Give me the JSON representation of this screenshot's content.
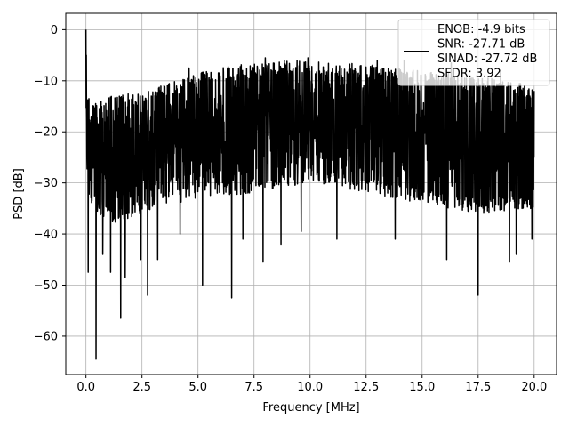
{
  "chart_data": {
    "type": "line",
    "xlabel": "Frequency [MHz]",
    "ylabel": "PSD [dB]",
    "xlim": [
      -0.9,
      21.0
    ],
    "ylim": [
      -67.5,
      3.2
    ],
    "xticks": [
      0.0,
      2.5,
      5.0,
      7.5,
      10.0,
      12.5,
      15.0,
      17.5,
      20.0
    ],
    "xtick_labels": [
      "0.0",
      "2.5",
      "5.0",
      "7.5",
      "10.0",
      "12.5",
      "15.0",
      "17.5",
      "20.0"
    ],
    "yticks": [
      0,
      -10,
      -20,
      -30,
      -40,
      -50,
      -60
    ],
    "ytick_labels": [
      "0",
      "−10",
      "−20",
      "−30",
      "−40",
      "−50",
      "−60"
    ],
    "grid": true,
    "legend_position": "top-right",
    "line_color": "#000000",
    "series": [
      {
        "name": "ENOB: -4.9 bits\nSNR: -27.71 dB\nSINAD: -27.72 dB\nSFDR: 3.92",
        "x_range": [
          0.0,
          20.0
        ],
        "envelope_upper": [
          [
            0.0,
            -12.0
          ],
          [
            0.5,
            -14.0
          ],
          [
            1.0,
            -13.0
          ],
          [
            2.0,
            -12.5
          ],
          [
            3.0,
            -11.5
          ],
          [
            4.0,
            -10.0
          ],
          [
            5.0,
            -8.5
          ],
          [
            6.0,
            -7.5
          ],
          [
            7.5,
            -6.5
          ],
          [
            9.0,
            -6.0
          ],
          [
            10.0,
            -6.0
          ],
          [
            12.0,
            -6.5
          ],
          [
            14.0,
            -7.5
          ],
          [
            16.0,
            -8.5
          ],
          [
            18.0,
            -9.5
          ],
          [
            20.0,
            -11.0
          ]
        ],
        "envelope_lower": [
          [
            0.0,
            -33.0
          ],
          [
            1.0,
            -38.0
          ],
          [
            2.0,
            -37.0
          ],
          [
            3.0,
            -35.0
          ],
          [
            5.0,
            -33.0
          ],
          [
            7.5,
            -32.0
          ],
          [
            10.0,
            -30.0
          ],
          [
            12.5,
            -32.0
          ],
          [
            15.0,
            -34.0
          ],
          [
            17.5,
            -36.0
          ],
          [
            20.0,
            -35.0
          ]
        ],
        "peaks": [
          [
            0.0,
            0.0
          ],
          [
            0.02,
            -5.0
          ],
          [
            0.1,
            -8.0
          ],
          [
            1.0,
            -16.0
          ],
          [
            3.2,
            -9.5
          ],
          [
            4.6,
            -7.5
          ],
          [
            8.0,
            -5.5
          ],
          [
            9.9,
            -5.5
          ],
          [
            11.2,
            -5.5
          ],
          [
            13.0,
            -6.0
          ],
          [
            14.2,
            -6.0
          ],
          [
            16.3,
            -6.5
          ],
          [
            18.5,
            -8.0
          ],
          [
            20.0,
            -12.0
          ]
        ],
        "dips": [
          [
            0.1,
            -47.5
          ],
          [
            0.45,
            -64.5
          ],
          [
            0.75,
            -44.0
          ],
          [
            1.1,
            -47.5
          ],
          [
            1.55,
            -56.5
          ],
          [
            1.75,
            -48.5
          ],
          [
            2.45,
            -45.0
          ],
          [
            2.75,
            -52.0
          ],
          [
            3.2,
            -45.0
          ],
          [
            4.2,
            -40.0
          ],
          [
            5.2,
            -50.0
          ],
          [
            6.5,
            -52.5
          ],
          [
            7.0,
            -41.0
          ],
          [
            7.9,
            -45.5
          ],
          [
            8.7,
            -42.0
          ],
          [
            9.6,
            -39.5
          ],
          [
            11.2,
            -41.0
          ],
          [
            13.8,
            -41.0
          ],
          [
            16.1,
            -45.0
          ],
          [
            17.5,
            -52.0
          ],
          [
            18.9,
            -45.5
          ],
          [
            19.2,
            -44.0
          ],
          [
            19.9,
            -41.0
          ]
        ]
      }
    ]
  }
}
